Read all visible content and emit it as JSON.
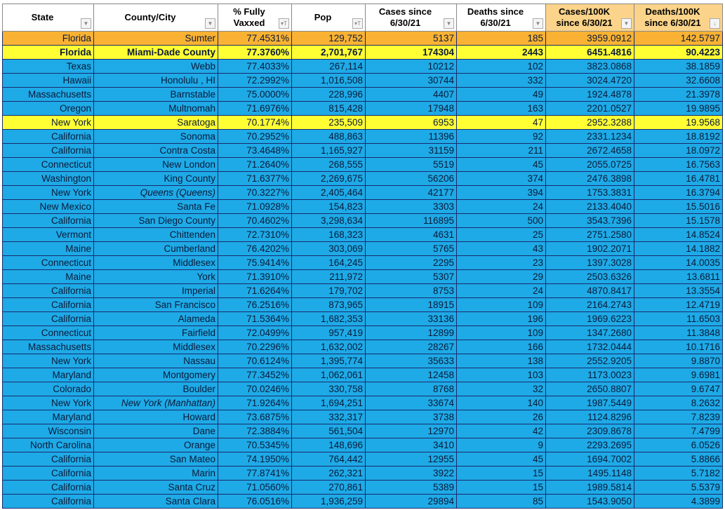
{
  "colors": {
    "header": "#ffffff",
    "header_highlight": "#fbd38a",
    "row_default": "#1eaae6",
    "row_orange": "#f9b233",
    "row_yellow": "#ffff33"
  },
  "columns": [
    {
      "label": "State",
      "filter_icon": "dropdown-arrow-icon",
      "highlight": false
    },
    {
      "label": "County/City",
      "filter_icon": "dropdown-arrow-icon",
      "highlight": false
    },
    {
      "label": "% Fully Vaxxed",
      "filter_icon": "filter-active-icon",
      "highlight": false
    },
    {
      "label": "Pop",
      "filter_icon": "filter-active-icon",
      "highlight": false
    },
    {
      "label": "Cases since 6/30/21",
      "filter_icon": "dropdown-arrow-icon",
      "highlight": false
    },
    {
      "label": "Deaths since 6/30/21",
      "filter_icon": "dropdown-arrow-icon",
      "highlight": false
    },
    {
      "label": "Cases/100K since 6/30/21",
      "filter_icon": "dropdown-arrow-icon",
      "highlight": true
    },
    {
      "label": "Deaths/100K since 6/30/21",
      "filter_icon": "sort-descending-icon",
      "highlight": true
    }
  ],
  "rows": [
    {
      "style": "orange",
      "cells": [
        "Florida",
        "Sumter",
        "77.4531%",
        "129,752",
        "5137",
        "185",
        "3959.0912",
        "142.5797"
      ]
    },
    {
      "style": "yellow",
      "bold": true,
      "cells": [
        "Florida",
        "Miami-Dade County",
        "77.3760%",
        "2,701,767",
        "174304",
        "2443",
        "6451.4816",
        "90.4223"
      ]
    },
    {
      "cells": [
        "Texas",
        "Webb",
        "77.4033%",
        "267,114",
        "10212",
        "102",
        "3823.0868",
        "38.1859"
      ]
    },
    {
      "cells": [
        "Hawaii",
        "Honolulu , HI",
        "72.2992%",
        "1,016,508",
        "30744",
        "332",
        "3024.4720",
        "32.6608"
      ]
    },
    {
      "cells": [
        "Massachusetts",
        "Barnstable",
        "75.0000%",
        "228,996",
        "4407",
        "49",
        "1924.4878",
        "21.3978"
      ]
    },
    {
      "cells": [
        "Oregon",
        "Multnomah",
        "71.6976%",
        "815,428",
        "17948",
        "163",
        "2201.0527",
        "19.9895"
      ]
    },
    {
      "style": "yellow",
      "cells": [
        "New York",
        "Saratoga",
        "70.1774%",
        "235,509",
        "6953",
        "47",
        "2952.3288",
        "19.9568"
      ]
    },
    {
      "cells": [
        "California",
        "Sonoma",
        "70.2952%",
        "488,863",
        "11396",
        "92",
        "2331.1234",
        "18.8192"
      ]
    },
    {
      "cells": [
        "California",
        "Contra Costa",
        "73.4648%",
        "1,165,927",
        "31159",
        "211",
        "2672.4658",
        "18.0972"
      ]
    },
    {
      "cells": [
        "Connecticut",
        "New London",
        "71.2640%",
        "268,555",
        "5519",
        "45",
        "2055.0725",
        "16.7563"
      ]
    },
    {
      "cells": [
        "Washington",
        "King County",
        "71.6377%",
        "2,269,675",
        "56206",
        "374",
        "2476.3898",
        "16.4781"
      ]
    },
    {
      "italic": true,
      "cells": [
        "New York",
        "Queens  (Queens)",
        "70.3227%",
        "2,405,464",
        "42177",
        "394",
        "1753.3831",
        "16.3794"
      ]
    },
    {
      "cells": [
        "New Mexico",
        "Santa Fe",
        "71.0928%",
        "154,823",
        "3303",
        "24",
        "2133.4040",
        "15.5016"
      ]
    },
    {
      "cells": [
        "California",
        "San Diego County",
        "70.4602%",
        "3,298,634",
        "116895",
        "500",
        "3543.7396",
        "15.1578"
      ]
    },
    {
      "cells": [
        "Vermont",
        "Chittenden",
        "72.7310%",
        "168,323",
        "4631",
        "25",
        "2751.2580",
        "14.8524"
      ]
    },
    {
      "cells": [
        "Maine",
        "Cumberland",
        "76.4202%",
        "303,069",
        "5765",
        "43",
        "1902.2071",
        "14.1882"
      ]
    },
    {
      "cells": [
        "Connecticut",
        "Middlesex",
        "75.9414%",
        "164,245",
        "2295",
        "23",
        "1397.3028",
        "14.0035"
      ]
    },
    {
      "cells": [
        "Maine",
        "York",
        "71.3910%",
        "211,972",
        "5307",
        "29",
        "2503.6326",
        "13.6811"
      ]
    },
    {
      "cells": [
        "California",
        "Imperial",
        "71.6264%",
        "179,702",
        "8753",
        "24",
        "4870.8417",
        "13.3554"
      ]
    },
    {
      "cells": [
        "California",
        "San Francisco",
        "76.2516%",
        "873,965",
        "18915",
        "109",
        "2164.2743",
        "12.4719"
      ]
    },
    {
      "cells": [
        "California",
        "Alameda",
        "71.5364%",
        "1,682,353",
        "33136",
        "196",
        "1969.6223",
        "11.6503"
      ]
    },
    {
      "cells": [
        "Connecticut",
        "Fairfield",
        "72.0499%",
        "957,419",
        "12899",
        "109",
        "1347.2680",
        "11.3848"
      ]
    },
    {
      "cells": [
        "Massachusetts",
        "Middlesex",
        "70.2296%",
        "1,632,002",
        "28267",
        "166",
        "1732.0444",
        "10.1716"
      ]
    },
    {
      "cells": [
        "New York",
        "Nassau",
        "70.6124%",
        "1,395,774",
        "35633",
        "138",
        "2552.9205",
        "9.8870"
      ]
    },
    {
      "cells": [
        "Maryland",
        "Montgomery",
        "77.3452%",
        "1,062,061",
        "12458",
        "103",
        "1173.0023",
        "9.6981"
      ]
    },
    {
      "cells": [
        "Colorado",
        "Boulder",
        "70.0246%",
        "330,758",
        "8768",
        "32",
        "2650.8807",
        "9.6747"
      ]
    },
    {
      "italic": true,
      "cells": [
        "New York",
        "New York  (Manhattan)",
        "71.9264%",
        "1,694,251",
        "33674",
        "140",
        "1987.5449",
        "8.2632"
      ]
    },
    {
      "cells": [
        "Maryland",
        "Howard",
        "73.6875%",
        "332,317",
        "3738",
        "26",
        "1124.8296",
        "7.8239"
      ]
    },
    {
      "cells": [
        "Wisconsin",
        "Dane",
        "72.3884%",
        "561,504",
        "12970",
        "42",
        "2309.8678",
        "7.4799"
      ]
    },
    {
      "cells": [
        "North Carolina",
        "Orange",
        "70.5345%",
        "148,696",
        "3410",
        "9",
        "2293.2695",
        "6.0526"
      ]
    },
    {
      "cells": [
        "California",
        "San Mateo",
        "74.1950%",
        "764,442",
        "12955",
        "45",
        "1694.7002",
        "5.8866"
      ]
    },
    {
      "cells": [
        "California",
        "Marin",
        "77.8741%",
        "262,321",
        "3922",
        "15",
        "1495.1148",
        "5.7182"
      ]
    },
    {
      "cells": [
        "California",
        "Santa Cruz",
        "71.0560%",
        "270,861",
        "5389",
        "15",
        "1989.5814",
        "5.5379"
      ]
    },
    {
      "cells": [
        "California",
        "Santa Clara",
        "76.0516%",
        "1,936,259",
        "29894",
        "85",
        "1543.9050",
        "4.3899"
      ]
    }
  ]
}
